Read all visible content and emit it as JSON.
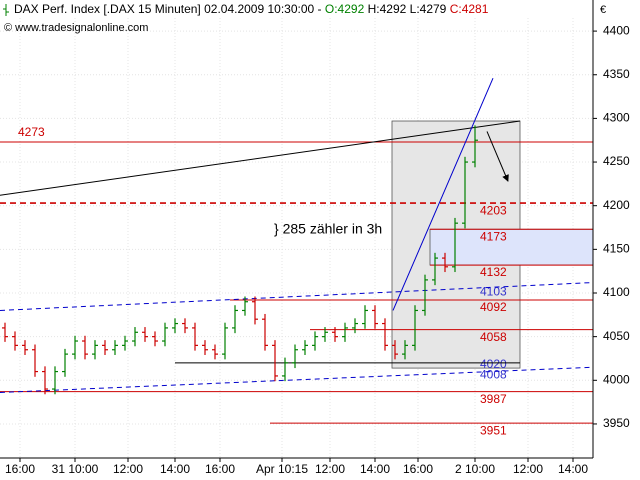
{
  "chart_data": {
    "type": "ohlc",
    "title": "DAX Perf. Index [.DAX  15 Minuten] 02.04.2009 10:30:00 -",
    "last_open": "O:4292",
    "last_high": "H:4292",
    "last_low": "L:4279",
    "last_close": "C:4281",
    "source": "© www.tradesignalonline.com",
    "currency": "€",
    "annotation": "} 285 zähler in 3h",
    "up_color": "#008000",
    "down_color": "#cc0000",
    "grid": true,
    "x": [
      0,
      1,
      2,
      3,
      4,
      5,
      6,
      7,
      8,
      9,
      10,
      11,
      12,
      13,
      14,
      15,
      16,
      17,
      18,
      19,
      20,
      21,
      22,
      23,
      24,
      25,
      26,
      27,
      28,
      29,
      30,
      31,
      32,
      33,
      34,
      35,
      36,
      37,
      38,
      39,
      40,
      41,
      42,
      43,
      44,
      45,
      46,
      47
    ],
    "open": [
      4060,
      4050,
      4040,
      4035,
      4010,
      3990,
      4010,
      4030,
      4045,
      4030,
      4040,
      4035,
      4040,
      4045,
      4055,
      4050,
      4045,
      4060,
      4065,
      4060,
      4040,
      4035,
      4030,
      4060,
      4080,
      4090,
      4070,
      4040,
      4005,
      4020,
      4035,
      4040,
      4050,
      4055,
      4050,
      4060,
      4065,
      4080,
      4065,
      4040,
      4030,
      4040,
      4080,
      4115,
      4140,
      4130,
      4180,
      4250
    ],
    "high": [
      4066,
      4056,
      4046,
      4041,
      4016,
      4016,
      4036,
      4051,
      4051,
      4046,
      4046,
      4046,
      4051,
      4061,
      4061,
      4056,
      4066,
      4071,
      4071,
      4066,
      4046,
      4041,
      4066,
      4086,
      4096,
      4096,
      4076,
      4046,
      4026,
      4041,
      4046,
      4056,
      4061,
      4061,
      4066,
      4071,
      4086,
      4086,
      4071,
      4046,
      4046,
      4086,
      4121,
      4146,
      4146,
      4186,
      4256,
      4292
    ],
    "low": [
      4044,
      4034,
      4029,
      4004,
      3984,
      3984,
      4004,
      4024,
      4024,
      4024,
      4029,
      4029,
      4034,
      4039,
      4044,
      4039,
      4039,
      4054,
      4054,
      4034,
      4029,
      4024,
      4024,
      4054,
      4074,
      4064,
      4034,
      3999,
      3999,
      4014,
      4029,
      4034,
      4044,
      4044,
      4044,
      4054,
      4059,
      4059,
      4034,
      4024,
      4024,
      4034,
      4074,
      4109,
      4124,
      4124,
      4174,
      4244
    ],
    "close": [
      4050,
      4040,
      4035,
      4010,
      3990,
      4010,
      4030,
      4045,
      4030,
      4040,
      4035,
      4040,
      4045,
      4055,
      4050,
      4045,
      4060,
      4065,
      4060,
      4040,
      4035,
      4030,
      4060,
      4080,
      4090,
      4070,
      4040,
      4005,
      4020,
      4035,
      4040,
      4050,
      4055,
      4050,
      4060,
      4065,
      4080,
      4065,
      4040,
      4030,
      4040,
      4080,
      4115,
      4140,
      4130,
      4180,
      4250,
      4275
    ],
    "xlim": [
      -0.5,
      58.8
    ],
    "xticks": [
      {
        "value": 1.5,
        "label": "16:00"
      },
      {
        "value": 7,
        "label": "31 10:00"
      },
      {
        "value": 12.3,
        "label": "12:00"
      },
      {
        "value": 17,
        "label": "14:00"
      },
      {
        "value": 21.5,
        "label": "16:00"
      },
      {
        "value": 27.7,
        "label": "Apr 10:15"
      },
      {
        "value": 32.5,
        "label": "12:00"
      },
      {
        "value": 37,
        "label": "14:00"
      },
      {
        "value": 41.3,
        "label": "16:00"
      },
      {
        "value": 47,
        "label": "2 10:00"
      },
      {
        "value": 52.3,
        "label": "12:00"
      },
      {
        "value": 56.8,
        "label": "14:00"
      }
    ],
    "ylim": [
      3911,
      4415
    ],
    "yticks": [
      3950,
      4000,
      4050,
      4100,
      4150,
      4200,
      4250,
      4300,
      4350,
      4400
    ],
    "zones": [
      {
        "x": [
          38.7,
          51.5
        ],
        "y": [
          4014,
          4297
        ],
        "color": "#e6e6e6"
      },
      {
        "x": [
          42.5,
          58.8
        ],
        "y": [
          4132,
          4173
        ],
        "color": "#dde4fb"
      }
    ],
    "levels": [
      {
        "value": 4273,
        "from": -0.5,
        "to": 58.8,
        "dash": false,
        "label_side": "left"
      },
      {
        "value": 4203,
        "from": -0.5,
        "to": 58.8,
        "dash": true,
        "label_side": "right"
      },
      {
        "value": 4173,
        "from": 42.5,
        "to": 58.8,
        "dash": false,
        "label_side": "right"
      },
      {
        "value": 4132,
        "from": 42.5,
        "to": 58.8,
        "dash": false,
        "label_side": "right"
      },
      {
        "value": 4092,
        "from": 22.5,
        "to": 58.8,
        "dash": false,
        "label_side": "right"
      },
      {
        "value": 4058,
        "from": 30.5,
        "to": 58.8,
        "dash": false,
        "label_side": "right"
      },
      {
        "value": 3987,
        "from": -0.5,
        "to": 58.8,
        "dash": false,
        "label_side": "right"
      },
      {
        "value": 3951,
        "from": 26.5,
        "to": 58.8,
        "dash": false,
        "label_side": "right"
      }
    ],
    "level_color": "#cc0000",
    "price_labels": [
      {
        "value": 4103,
        "color": "#3333cc"
      },
      {
        "value": 4020,
        "color": "#3333cc"
      },
      {
        "value": 4008,
        "color": "#3333cc"
      }
    ],
    "lines": [
      {
        "x": [
          -0.5,
          51.5
        ],
        "y": [
          4212,
          4297
        ],
        "color": "#000000",
        "dash": false,
        "arrow": false
      },
      {
        "x": [
          38.8,
          48.8
        ],
        "y": [
          4080,
          4346
        ],
        "color": "#0000cc",
        "dash": false,
        "arrow": false
      },
      {
        "x": [
          -0.5,
          58.8
        ],
        "y": [
          4080,
          4112
        ],
        "color": "#0000cc",
        "dash": true,
        "arrow": false
      },
      {
        "x": [
          -0.5,
          58.8
        ],
        "y": [
          3986,
          4015
        ],
        "color": "#0000cc",
        "dash": true,
        "arrow": false
      },
      {
        "x": [
          17,
          51.5
        ],
        "y": [
          4020,
          4020
        ],
        "color": "#000000",
        "dash": false,
        "arrow": false
      },
      {
        "x": [
          48.2,
          50.3
        ],
        "y": [
          4285,
          4228
        ],
        "color": "#000000",
        "dash": false,
        "arrow": true
      }
    ]
  }
}
